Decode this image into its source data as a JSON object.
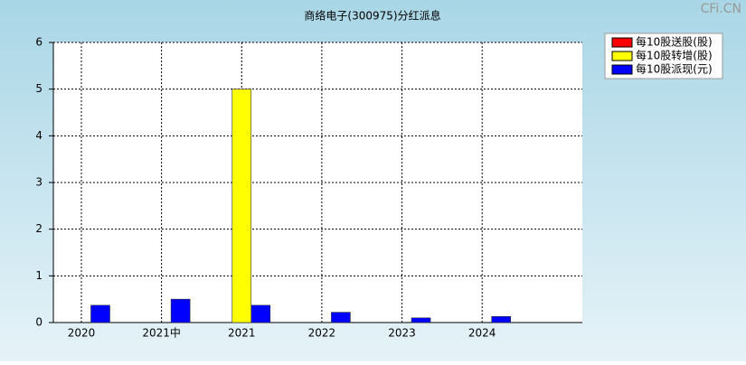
{
  "chart_data": {
    "type": "bar",
    "title": "商络电子(300975)分红派息",
    "watermark": "CFi.CN",
    "categories": [
      "2020",
      "2021中",
      "2021",
      "2022",
      "2023",
      "2024"
    ],
    "series": [
      {
        "name": "每10股送股(股)",
        "color": "#ff0000",
        "values": [
          0,
          0,
          0,
          0,
          0,
          0
        ]
      },
      {
        "name": "每10股转增(股)",
        "color": "#ffff00",
        "values": [
          0,
          0,
          5,
          0,
          0,
          0
        ]
      },
      {
        "name": "每10股派现(元)",
        "color": "#0000ff",
        "values": [
          0.37,
          0.5,
          0.37,
          0.22,
          0.1,
          0.13
        ]
      }
    ],
    "ylim": [
      0,
      6
    ],
    "yticks": [
      0,
      1,
      2,
      3,
      4,
      5,
      6
    ],
    "grid": true,
    "legend": "top-right"
  }
}
